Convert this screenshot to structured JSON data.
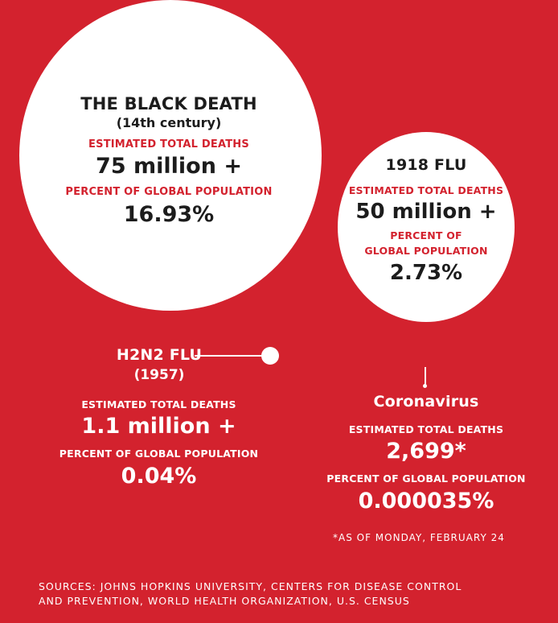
{
  "chart_data": {
    "type": "bubble",
    "metrics": {
      "deaths_label": "ESTIMATED TOTAL DEATHS",
      "percent_label": "PERCENT OF GLOBAL POPULATION",
      "percent_label_line1": "PERCENT OF",
      "percent_label_line2": "GLOBAL POPULATION"
    },
    "pandemics": [
      {
        "name": "THE BLACK DEATH",
        "period": "(14th century)",
        "deaths_text": "75 million +",
        "deaths_value": 75000000,
        "percent_text": "16.93%",
        "percent_value": 16.93
      },
      {
        "name": "1918 FLU",
        "period": "",
        "deaths_text": "50 million +",
        "deaths_value": 50000000,
        "percent_text": "2.73%",
        "percent_value": 2.73
      },
      {
        "name": "H2N2 FLU",
        "period": "(1957)",
        "deaths_text": "1.1 million +",
        "deaths_value": 1100000,
        "percent_text": "0.04%",
        "percent_value": 0.04
      },
      {
        "name": "Coronavirus",
        "period": "",
        "deaths_text": "2,699*",
        "deaths_value": 2699,
        "percent_text": "0.000035%",
        "percent_value": 3.5e-05,
        "note": "*AS OF MONDAY, FEBRUARY 24"
      }
    ]
  },
  "sources": {
    "line1": "SOURCES: JOHNS HOPKINS UNIVERSITY, CENTERS FOR DISEASE CONTROL",
    "line2": "AND PREVENTION, WORLD HEALTH ORGANIZATION, U.S. CENSUS"
  },
  "colors": {
    "background": "#d3222e",
    "bubble": "#ffffff",
    "text_dark": "#1c1c1c",
    "accent": "#d3222e"
  }
}
